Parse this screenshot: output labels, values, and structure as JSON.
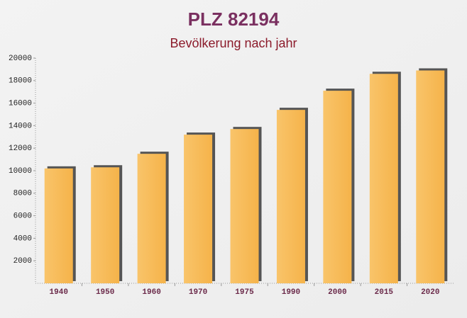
{
  "chart_data": {
    "type": "bar",
    "title": "PLZ 82194",
    "subtitle": "Bevölkerung nach jahr",
    "categories": [
      "1940",
      "1950",
      "1960",
      "1970",
      "1975",
      "1990",
      "2000",
      "2015",
      "2020"
    ],
    "values": [
      10200,
      10300,
      11500,
      13200,
      13700,
      15400,
      17100,
      18600,
      18900
    ],
    "color": "#f7bb58",
    "ylim": [
      0,
      20000
    ],
    "yticks": [
      2000,
      4000,
      6000,
      8000,
      10000,
      12000,
      14000,
      16000,
      18000,
      20000
    ],
    "grid": false
  }
}
